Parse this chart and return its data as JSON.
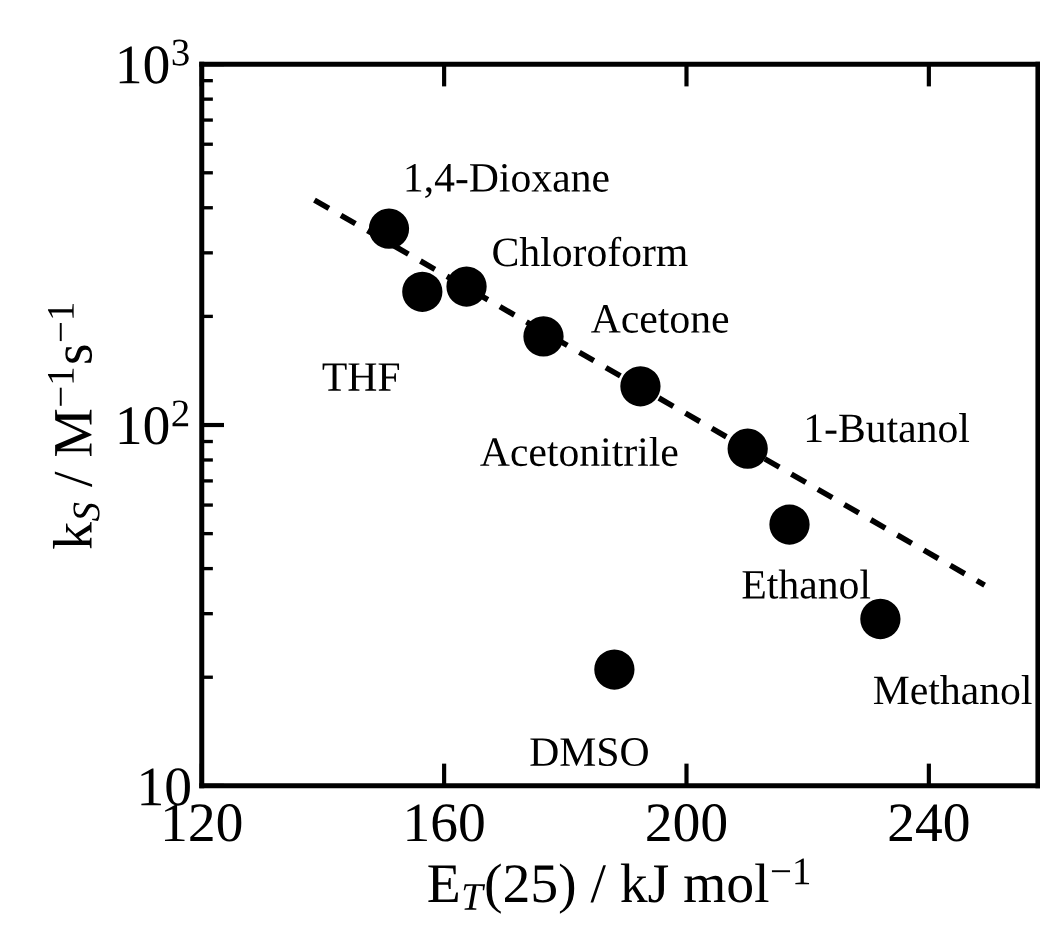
{
  "chart_data": {
    "type": "scatter",
    "xlabel": "E$_{T}$(25) / kJ mol$^{−1}$",
    "ylabel": "k$_{S}$ / M$^{−1}$s$^{−1}$",
    "log": "y",
    "xlim": [
      120,
      258
    ],
    "xticks": [
      120,
      160,
      200,
      240
    ],
    "ylim": [
      10,
      1000
    ],
    "yticks": [
      {
        "value": 10,
        "label": "10"
      },
      {
        "value": 100,
        "label": "10$^{2}$"
      },
      {
        "value": 1000,
        "label": "10$^{3}$"
      }
    ],
    "grid": false,
    "legend": false,
    "marker": "circle",
    "series": [
      {
        "color": "#000000",
        "x": [
          150.9,
          156.4,
          163.7,
          176.4,
          192.4,
          210.1,
          217.0,
          232.0,
          188.1
        ],
        "values": [
          350,
          234,
          242,
          176,
          128,
          86,
          53,
          29,
          21
        ]
      },
      {
        "type": "line",
        "color": "#000000",
        "line_style": "dashed",
        "marker": "none",
        "x": [
          138.6,
          249.2
        ],
        "values": [
          420,
          36
        ]
      }
    ],
    "annotations": [
      {
        "text": "1,4-Dioxane",
        "x": 150.9,
        "y": 350
      },
      {
        "text": "THF",
        "x": 156.4,
        "y": 234
      },
      {
        "text": "Chloroform",
        "x": 163.7,
        "y": 242
      },
      {
        "text": "Acetone",
        "x": 176.4,
        "y": 176
      },
      {
        "text": "Acetonitrile",
        "x": 192.4,
        "y": 128
      },
      {
        "text": "1-Butanol",
        "x": 210.1,
        "y": 86
      },
      {
        "text": "Ethanol",
        "x": 217.0,
        "y": 53
      },
      {
        "text": "Methanol",
        "x": 232.0,
        "y": 29
      },
      {
        "text": "DMSO",
        "x": 188.1,
        "y": 21
      }
    ]
  }
}
